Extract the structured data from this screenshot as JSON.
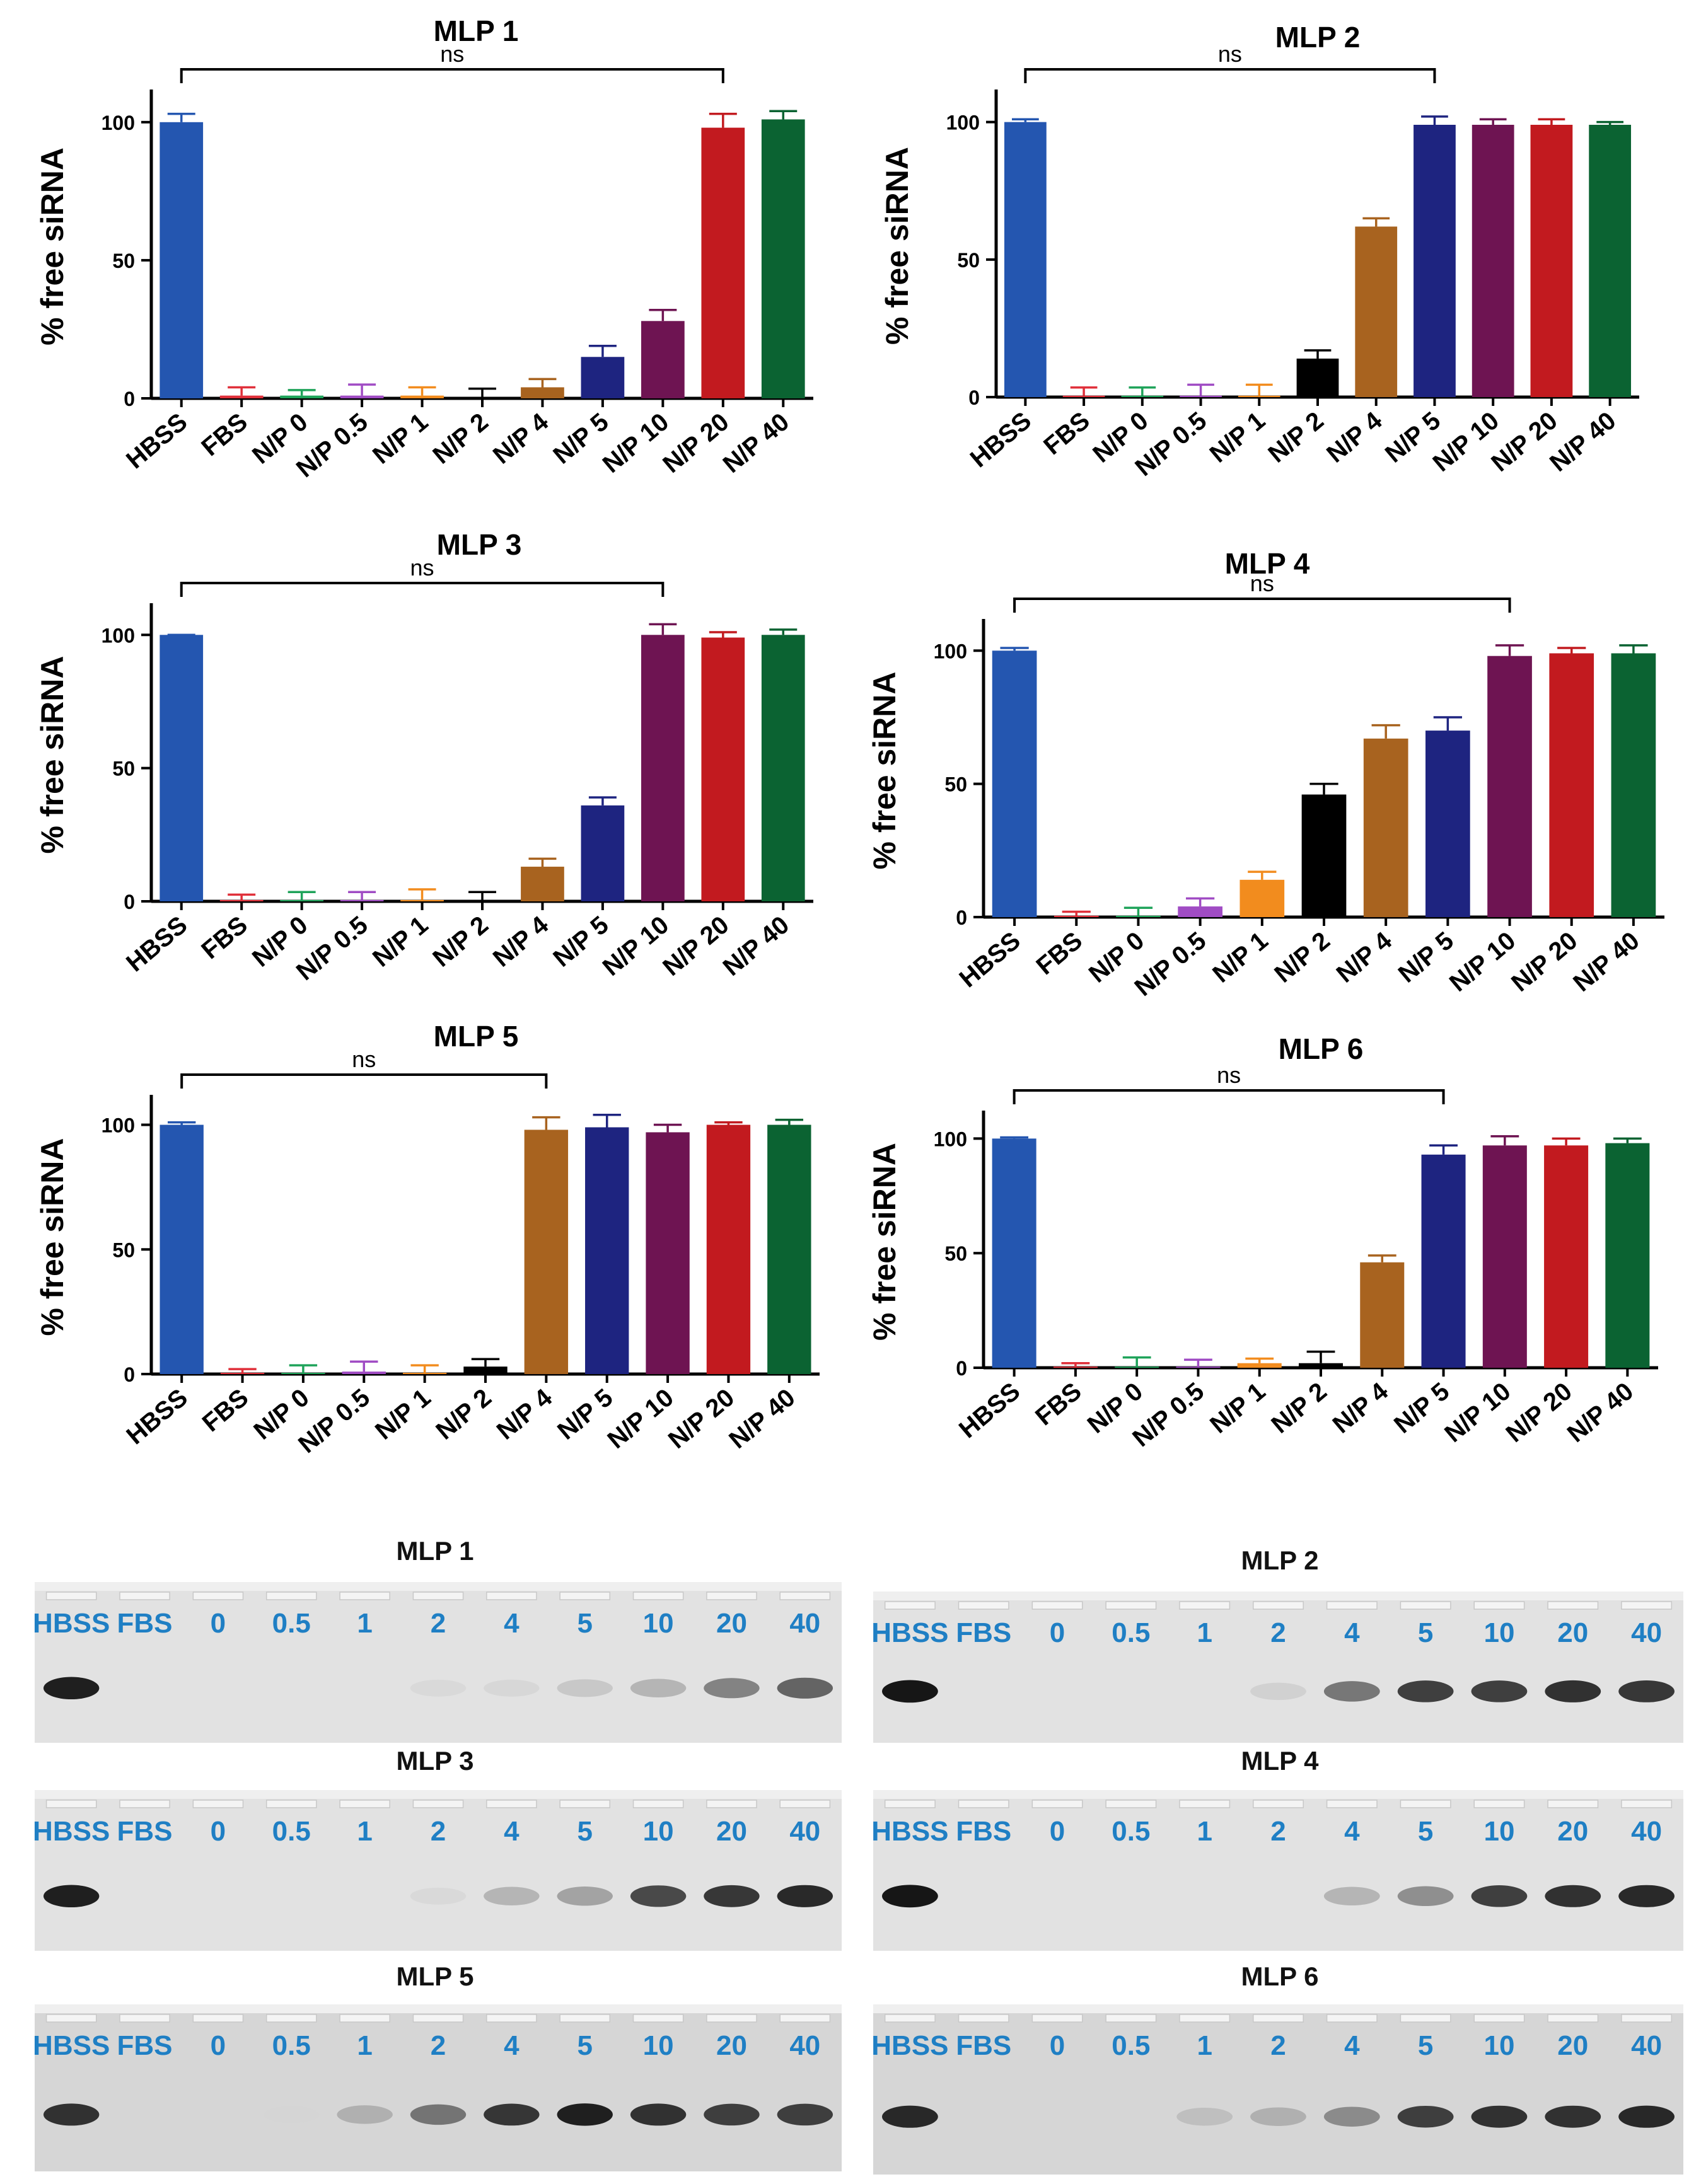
{
  "colors": {
    "HBSS": "#2456b0",
    "FBS": "#e0303a",
    "N/P 0": "#1fa35a",
    "N/P 0.5": "#a04cc4",
    "N/P 1": "#f28c1e",
    "N/P 2": "#000000",
    "N/P 4": "#a8631f",
    "N/P 5": "#1e2480",
    "N/P 10": "#6e1452",
    "N/P 20": "#c21a1f",
    "N/P 40": "#0b6332"
  },
  "chart_data": [
    {
      "type": "bar",
      "title": "MLP 1",
      "ylabel": "% free siRNA",
      "ylim": [
        0,
        110
      ],
      "yticks": [
        0,
        50,
        100
      ],
      "categories": [
        "HBSS",
        "FBS",
        "N/P 0",
        "N/P 0.5",
        "N/P 1",
        "N/P 2",
        "N/P 4",
        "N/P 5",
        "N/P 10",
        "N/P 20",
        "N/P 40"
      ],
      "values": [
        100,
        1,
        1,
        1,
        1,
        0.5,
        4,
        15,
        28,
        98,
        101
      ],
      "errors": [
        3,
        3,
        2,
        4,
        3,
        3,
        3,
        4,
        4,
        5,
        3
      ],
      "significance": {
        "from": "HBSS",
        "to": "N/P 20",
        "label": "ns"
      }
    },
    {
      "type": "bar",
      "title": "MLP 2",
      "ylabel": "% free siRNA",
      "ylim": [
        0,
        110
      ],
      "yticks": [
        0,
        50,
        100
      ],
      "categories": [
        "HBSS",
        "FBS",
        "N/P 0",
        "N/P 0.5",
        "N/P 1",
        "N/P 2",
        "N/P 4",
        "N/P 5",
        "N/P 10",
        "N/P 20",
        "N/P 40"
      ],
      "values": [
        100,
        0.5,
        0.5,
        0.5,
        0.5,
        14,
        62,
        99,
        99,
        99,
        99
      ],
      "errors": [
        1,
        3,
        3,
        4,
        4,
        3,
        3,
        3,
        2,
        2,
        1
      ],
      "significance": {
        "from": "HBSS",
        "to": "N/P 5",
        "label": "ns"
      }
    },
    {
      "type": "bar",
      "title": "MLP 3",
      "ylabel": "% free siRNA",
      "ylim": [
        0,
        110
      ],
      "yticks": [
        0,
        50,
        100
      ],
      "categories": [
        "HBSS",
        "FBS",
        "N/P 0",
        "N/P 0.5",
        "N/P 1",
        "N/P 2",
        "N/P 4",
        "N/P 5",
        "N/P 10",
        "N/P 20",
        "N/P 40"
      ],
      "values": [
        100,
        0.5,
        0.5,
        0.5,
        0.5,
        0.5,
        13,
        36,
        100,
        99,
        100
      ],
      "errors": [
        0,
        2,
        3,
        3,
        4,
        3,
        3,
        3,
        4,
        2,
        2
      ],
      "significance": {
        "from": "HBSS",
        "to": "N/P 10",
        "label": "ns"
      }
    },
    {
      "type": "bar",
      "title": "MLP 4",
      "ylabel": "% free siRNA",
      "ylim": [
        0,
        110
      ],
      "yticks": [
        0,
        50,
        100
      ],
      "categories": [
        "HBSS",
        "FBS",
        "N/P 0",
        "N/P 0.5",
        "N/P 1",
        "N/P 2",
        "N/P 4",
        "N/P 5",
        "N/P 10",
        "N/P 20",
        "N/P 40"
      ],
      "values": [
        100,
        0.5,
        0.5,
        4,
        14,
        46,
        67,
        70,
        98,
        99,
        99
      ],
      "errors": [
        1,
        1.5,
        3,
        3,
        3,
        4,
        5,
        5,
        4,
        2,
        3
      ],
      "significance": {
        "from": "HBSS",
        "to": "N/P 10",
        "label": "ns"
      }
    },
    {
      "type": "bar",
      "title": "MLP 5",
      "ylabel": "% free siRNA",
      "ylim": [
        0,
        110
      ],
      "yticks": [
        0,
        50,
        100
      ],
      "categories": [
        "HBSS",
        "FBS",
        "N/P 0",
        "N/P 0.5",
        "N/P 1",
        "N/P 2",
        "N/P 4",
        "N/P 5",
        "N/P 10",
        "N/P 20",
        "N/P 40"
      ],
      "values": [
        100,
        0.5,
        0.5,
        1,
        0.5,
        3,
        98,
        99,
        97,
        100,
        100
      ],
      "errors": [
        1,
        1.5,
        3,
        4,
        3,
        3,
        5,
        5,
        3,
        1,
        2
      ],
      "significance": {
        "from": "HBSS",
        "to": "N/P 4",
        "label": "ns"
      }
    },
    {
      "type": "bar",
      "title": "MLP 6",
      "ylabel": "% free siRNA",
      "ylim": [
        0,
        110
      ],
      "yticks": [
        0,
        50,
        100
      ],
      "categories": [
        "HBSS",
        "FBS",
        "N/P 0",
        "N/P 0.5",
        "N/P 1",
        "N/P 2",
        "N/P 4",
        "N/P 5",
        "N/P 10",
        "N/P 20",
        "N/P 40"
      ],
      "values": [
        100,
        0.5,
        0.5,
        0.5,
        2,
        2,
        46,
        93,
        97,
        97,
        98
      ],
      "errors": [
        0.5,
        1.5,
        4,
        3,
        2,
        5,
        3,
        4,
        4,
        3,
        2
      ],
      "significance": {
        "from": "HBSS",
        "to": "N/P 5",
        "label": "ns"
      }
    }
  ],
  "gels": [
    {
      "title": "MLP 1",
      "lanes": [
        "HBSS",
        "FBS",
        "0",
        "0.5",
        "1",
        "2",
        "4",
        "5",
        "10",
        "20",
        "40"
      ],
      "band_intensity": [
        0.95,
        0,
        0,
        0,
        0,
        0.08,
        0.1,
        0.22,
        0.35,
        0.6,
        0.72
      ]
    },
    {
      "title": "MLP 2",
      "lanes": [
        "HBSS",
        "FBS",
        "0",
        "0.5",
        "1",
        "2",
        "4",
        "5",
        "10",
        "20",
        "40"
      ],
      "band_intensity": [
        0.98,
        0,
        0,
        0,
        0,
        0.15,
        0.65,
        0.85,
        0.85,
        0.9,
        0.88
      ]
    },
    {
      "title": "MLP 3",
      "lanes": [
        "HBSS",
        "FBS",
        "0",
        "0.5",
        "1",
        "2",
        "4",
        "5",
        "10",
        "20",
        "40"
      ],
      "band_intensity": [
        0.95,
        0,
        0,
        0,
        0,
        0.08,
        0.35,
        0.45,
        0.82,
        0.88,
        0.92
      ]
    },
    {
      "title": "MLP 4",
      "lanes": [
        "HBSS",
        "FBS",
        "0",
        "0.5",
        "1",
        "2",
        "4",
        "5",
        "10",
        "20",
        "40"
      ],
      "band_intensity": [
        0.98,
        0,
        0,
        0,
        0,
        0,
        0.35,
        0.55,
        0.85,
        0.9,
        0.92
      ]
    },
    {
      "title": "MLP 5",
      "lanes": [
        "HBSS",
        "FBS",
        "0",
        "0.5",
        "1",
        "2",
        "4",
        "5",
        "10",
        "20",
        "40"
      ],
      "band_intensity": [
        0.9,
        0,
        0,
        0.05,
        0.35,
        0.65,
        0.88,
        0.95,
        0.9,
        0.85,
        0.85
      ]
    },
    {
      "title": "MLP 6",
      "lanes": [
        "HBSS",
        "FBS",
        "0",
        "0.5",
        "1",
        "2",
        "4",
        "5",
        "10",
        "20",
        "40"
      ],
      "band_intensity": [
        0.92,
        0,
        0,
        0,
        0.25,
        0.35,
        0.55,
        0.85,
        0.9,
        0.9,
        0.92
      ]
    }
  ]
}
